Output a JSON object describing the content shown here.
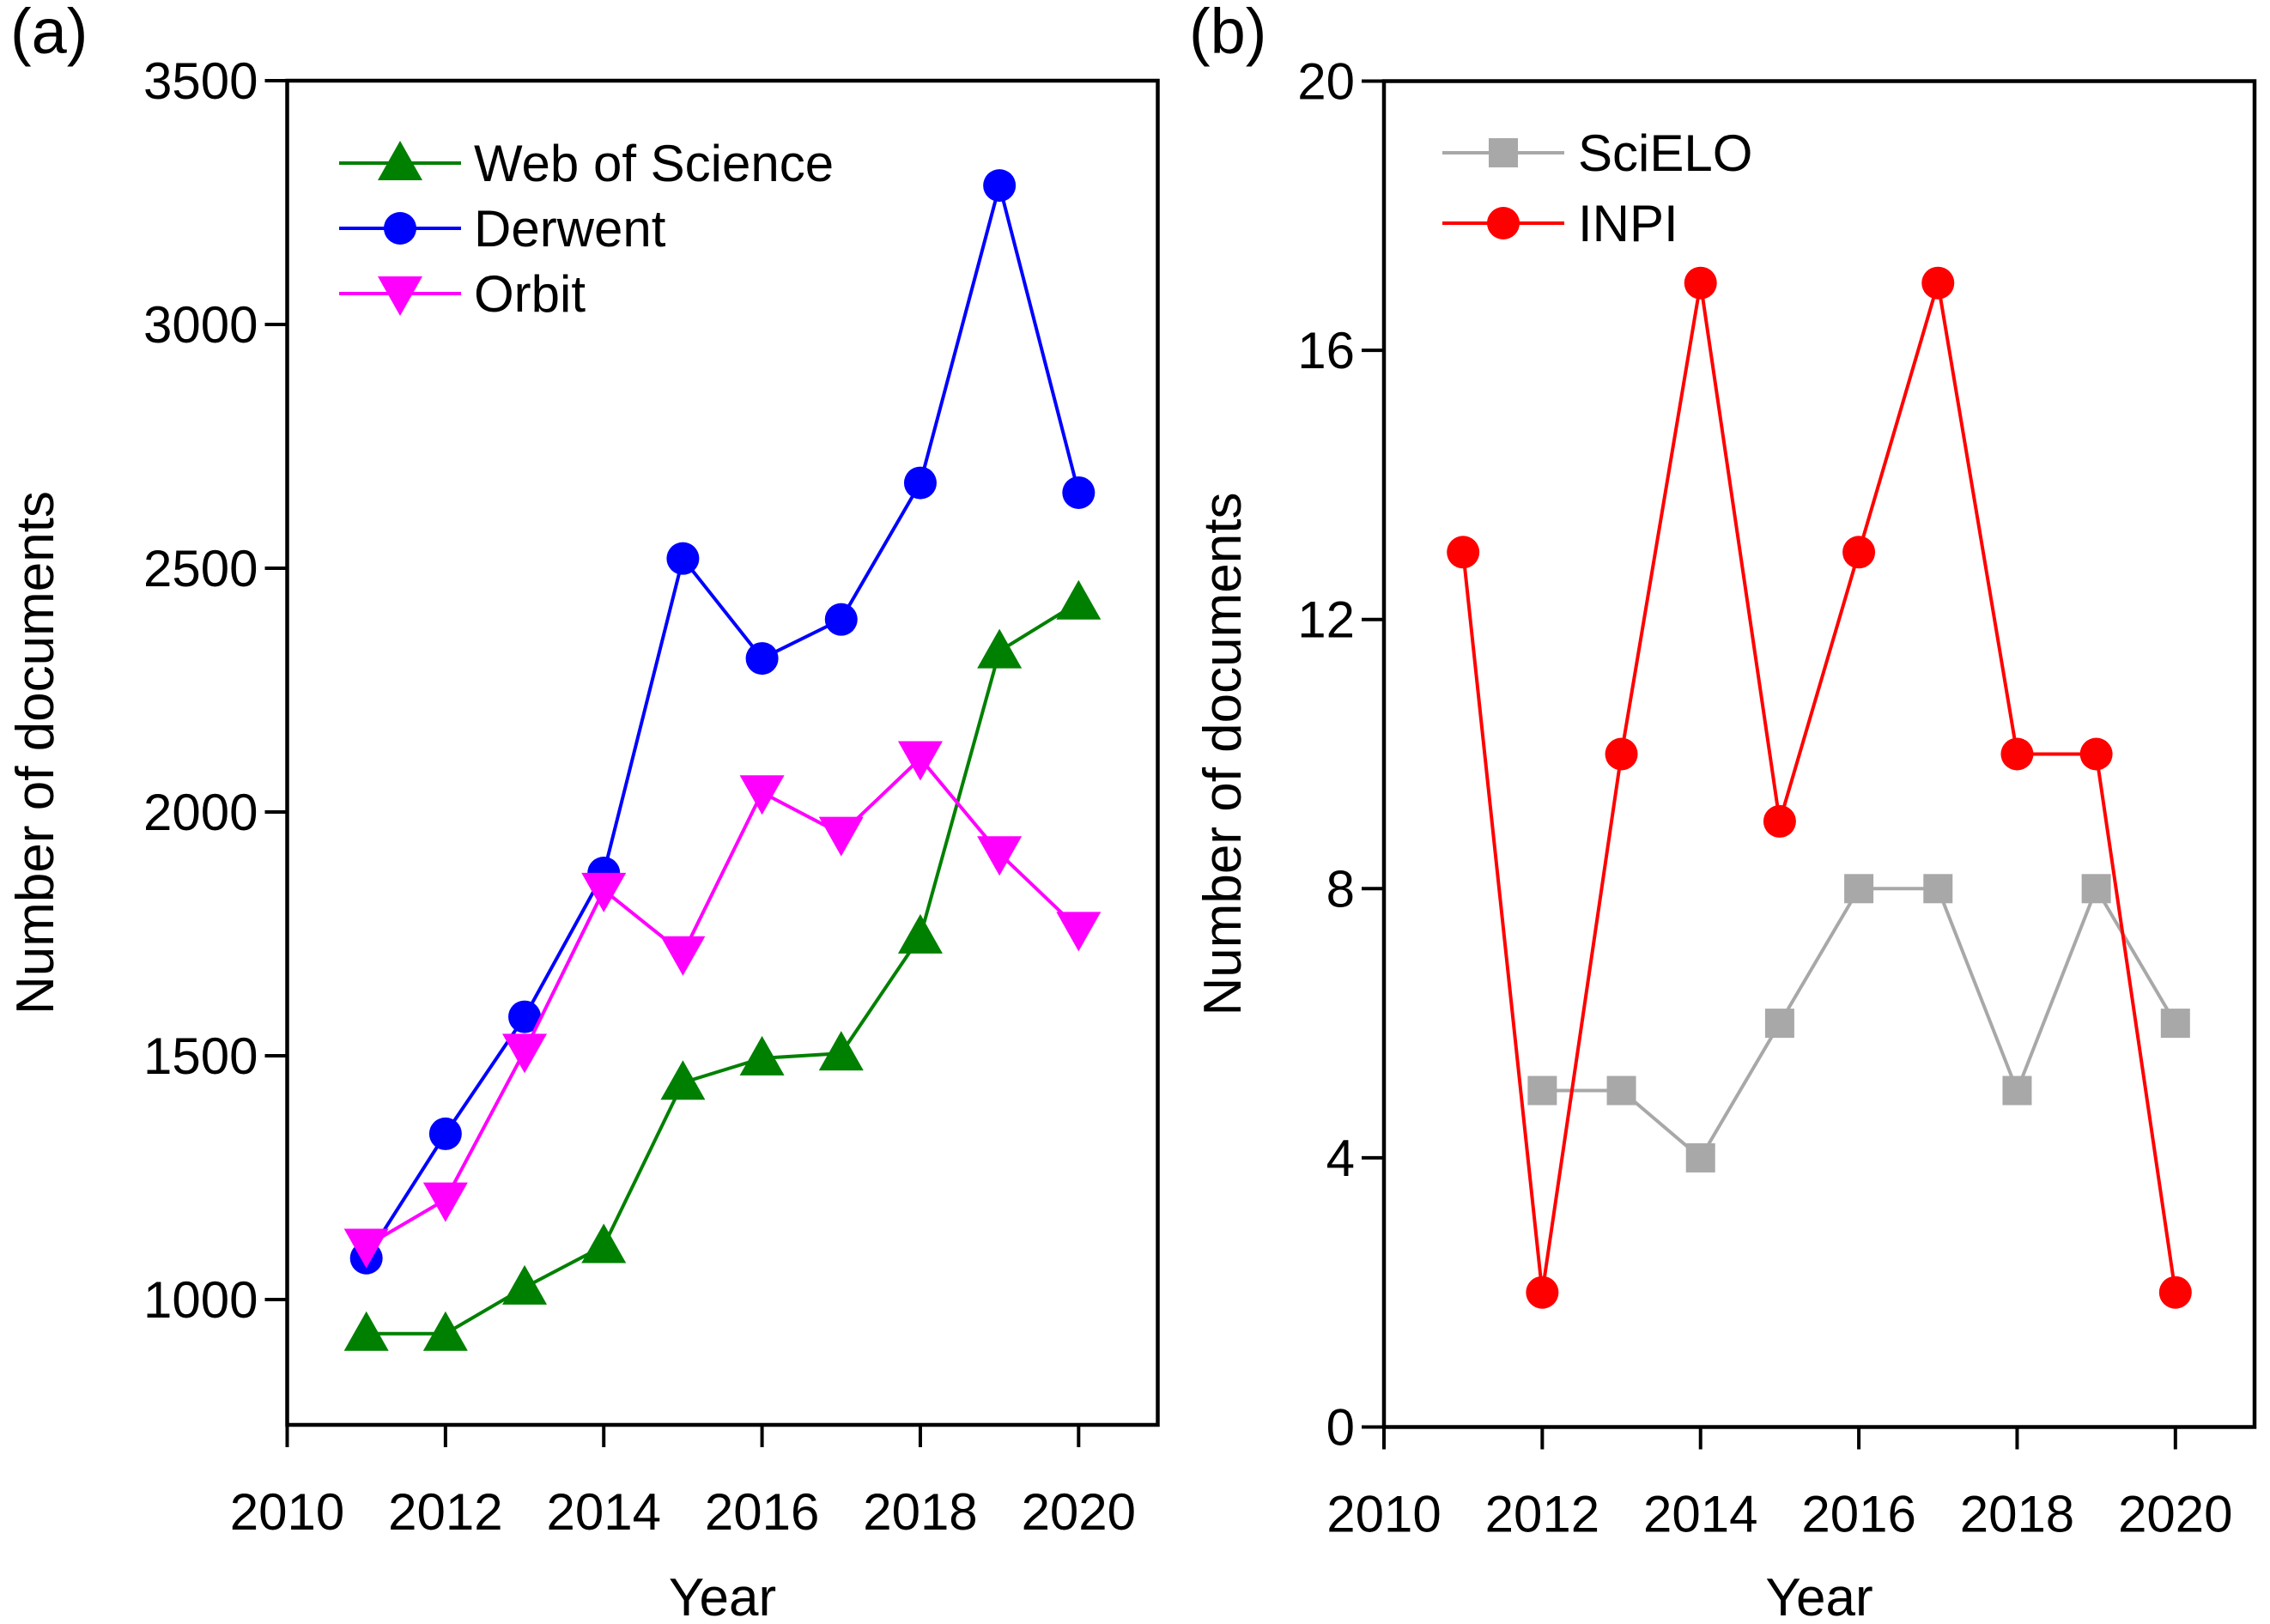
{
  "figure": {
    "background": "#ffffff",
    "text_color": "#000000"
  },
  "chart_data": [
    {
      "type": "line",
      "panel_label": "(a)",
      "xlabel": "Year",
      "ylabel": "Number of documents",
      "xlim": [
        2010,
        2021
      ],
      "ylim": [
        743,
        3500
      ],
      "xticks": [
        2010,
        2012,
        2014,
        2016,
        2018,
        2020
      ],
      "yticks": [
        1000,
        1500,
        2000,
        2500,
        3000,
        3500
      ],
      "grid": false,
      "legend_position": "upper-left-inside",
      "series": [
        {
          "name": "Web of Science",
          "color": "#008000",
          "marker": "triangle-up",
          "x": [
            2011,
            2012,
            2013,
            2014,
            2015,
            2016,
            2017,
            2018,
            2019,
            2020
          ],
          "values": [
            930,
            930,
            1025,
            1110,
            1445,
            1495,
            1505,
            1745,
            2330,
            2430
          ]
        },
        {
          "name": "Derwent",
          "color": "#0000ff",
          "marker": "circle",
          "x": [
            2011,
            2012,
            2013,
            2014,
            2015,
            2016,
            2017,
            2018,
            2019,
            2020
          ],
          "values": [
            1085,
            1340,
            1580,
            1875,
            2520,
            2315,
            2395,
            2675,
            3285,
            2655
          ]
        },
        {
          "name": "Orbit",
          "color": "#ff00ff",
          "marker": "triangle-down",
          "x": [
            2011,
            2012,
            2013,
            2014,
            2015,
            2016,
            2017,
            2018,
            2019,
            2020
          ],
          "values": [
            1110,
            1205,
            1510,
            1840,
            1710,
            2040,
            1955,
            2110,
            1915,
            1760
          ]
        }
      ]
    },
    {
      "type": "line",
      "panel_label": "(b)",
      "xlabel": "Year",
      "ylabel": "Number of documents",
      "xlim": [
        2010,
        2021
      ],
      "ylim": [
        0,
        20
      ],
      "xticks": [
        2010,
        2012,
        2014,
        2016,
        2018,
        2020
      ],
      "yticks": [
        0,
        4,
        8,
        12,
        16,
        20
      ],
      "grid": false,
      "legend_position": "upper-left-inside",
      "series": [
        {
          "name": "SciELO",
          "color": "#a8a8a8",
          "marker": "square",
          "x": [
            2012,
            2013,
            2014,
            2015,
            2016,
            2017,
            2018,
            2019,
            2020
          ],
          "values": [
            5,
            5,
            4,
            6,
            8,
            8,
            5,
            8,
            6
          ]
        },
        {
          "name": "INPI",
          "color": "#ff0000",
          "marker": "circle",
          "x": [
            2011,
            2012,
            2013,
            2014,
            2015,
            2016,
            2017,
            2018,
            2019,
            2020
          ],
          "values": [
            13,
            2,
            10,
            17,
            9,
            13,
            17,
            10,
            10,
            2
          ]
        }
      ]
    }
  ]
}
